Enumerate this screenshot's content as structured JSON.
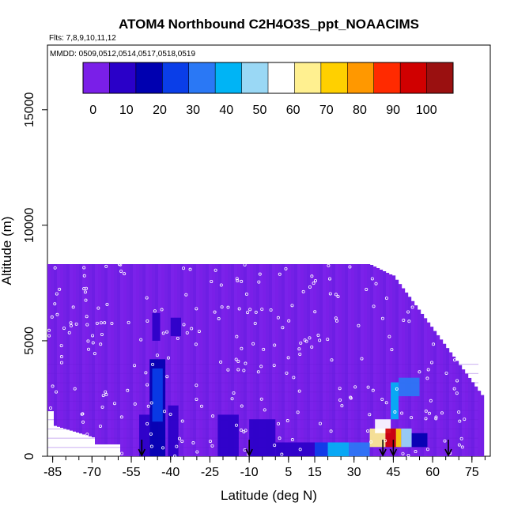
{
  "chart_data": {
    "type": "heatmap",
    "title": "ATOM4 Northbound C2H4O3S_ppt_NOAACIMS",
    "subtitle_flights": "Flts: 7,8,9,10,11,12",
    "subtitle_dates": "MMDD: 0509,0512,0514,0517,0518,0519",
    "xlabel": "Latitude (deg N)",
    "ylabel": "Altitude (m)",
    "x_ticks": [
      -85,
      -70,
      -55,
      -40,
      -25,
      -10,
      5,
      15,
      30,
      45,
      60,
      75
    ],
    "x_tick_labels": [
      "-85",
      "-70",
      "-55",
      "-40",
      "-25",
      "-10",
      "5",
      "15",
      "30",
      "45",
      "60",
      "75"
    ],
    "y_ticks": [
      0,
      5000,
      10000,
      15000
    ],
    "y_tick_labels": [
      "0",
      "5000",
      "10000",
      "15000"
    ],
    "xlim": [
      -87,
      82
    ],
    "ylim": [
      0,
      17800
    ],
    "colorbar": {
      "ticks": [
        0,
        10,
        20,
        30,
        40,
        50,
        60,
        70,
        80,
        90,
        100
      ],
      "tick_labels": [
        "0",
        "10",
        "20",
        "30",
        "40",
        "50",
        "60",
        "70",
        "80",
        "90",
        "100"
      ],
      "range": [
        -3,
        108
      ],
      "colors": [
        "#7a1fe8",
        "#2a00c8",
        "#0000b0",
        "#0a3ee8",
        "#2a78f5",
        "#00b4f5",
        "#9ad8f5",
        "#ffffff",
        "#fff090",
        "#ffd000",
        "#ff9800",
        "#ff2a00",
        "#d00000",
        "#9a1010"
      ]
    },
    "altitude_bins_m": [
      0,
      400,
      800,
      1200,
      1600,
      2000,
      2400,
      2800,
      3200,
      3600
    ],
    "background_value": 0,
    "enhanced_regions": [
      {
        "lat": [
          -52,
          -48
        ],
        "alt": [
          0,
          1800
        ],
        "value": 12
      },
      {
        "lat": [
          -48,
          -42
        ],
        "alt": [
          0,
          4200
        ],
        "value": 14
      },
      {
        "lat": [
          -47,
          -43
        ],
        "alt": [
          1500,
          3800
        ],
        "value": 28
      },
      {
        "lat": [
          -41,
          -37
        ],
        "alt": [
          0,
          2200
        ],
        "value": 10
      },
      {
        "lat": [
          -47,
          -44
        ],
        "alt": [
          5000,
          6200
        ],
        "value": 8
      },
      {
        "lat": [
          -40,
          -36
        ],
        "alt": [
          5200,
          6000
        ],
        "value": 9
      },
      {
        "lat": [
          -22,
          -14
        ],
        "alt": [
          0,
          1800
        ],
        "value": 8
      },
      {
        "lat": [
          -10,
          0
        ],
        "alt": [
          0,
          1600
        ],
        "value": 7
      },
      {
        "lat": [
          0,
          15
        ],
        "alt": [
          0,
          600
        ],
        "value": 12
      },
      {
        "lat": [
          15,
          20
        ],
        "alt": [
          0,
          600
        ],
        "value": 28
      },
      {
        "lat": [
          20,
          28
        ],
        "alt": [
          0,
          600
        ],
        "value": 40
      },
      {
        "lat": [
          28,
          36
        ],
        "alt": [
          0,
          600
        ],
        "value": 34
      },
      {
        "lat": [
          36,
          42
        ],
        "alt": [
          400,
          1200
        ],
        "value": 62
      },
      {
        "lat": [
          38,
          44
        ],
        "alt": [
          1000,
          1600
        ],
        "value": 58
      },
      {
        "lat": [
          42,
          46
        ],
        "alt": [
          400,
          1200
        ],
        "value": 95
      },
      {
        "lat": [
          46,
          48
        ],
        "alt": [
          400,
          1200
        ],
        "value": 75
      },
      {
        "lat": [
          48,
          52
        ],
        "alt": [
          400,
          1200
        ],
        "value": 45
      },
      {
        "lat": [
          44,
          47
        ],
        "alt": [
          1600,
          3200
        ],
        "value": 42
      },
      {
        "lat": [
          47,
          55
        ],
        "alt": [
          2600,
          3400
        ],
        "value": 30
      },
      {
        "lat": [
          52,
          58
        ],
        "alt": [
          400,
          1000
        ],
        "value": 18
      }
    ],
    "profile_markers_lat": [
      -51,
      -10,
      41,
      45,
      66
    ]
  }
}
